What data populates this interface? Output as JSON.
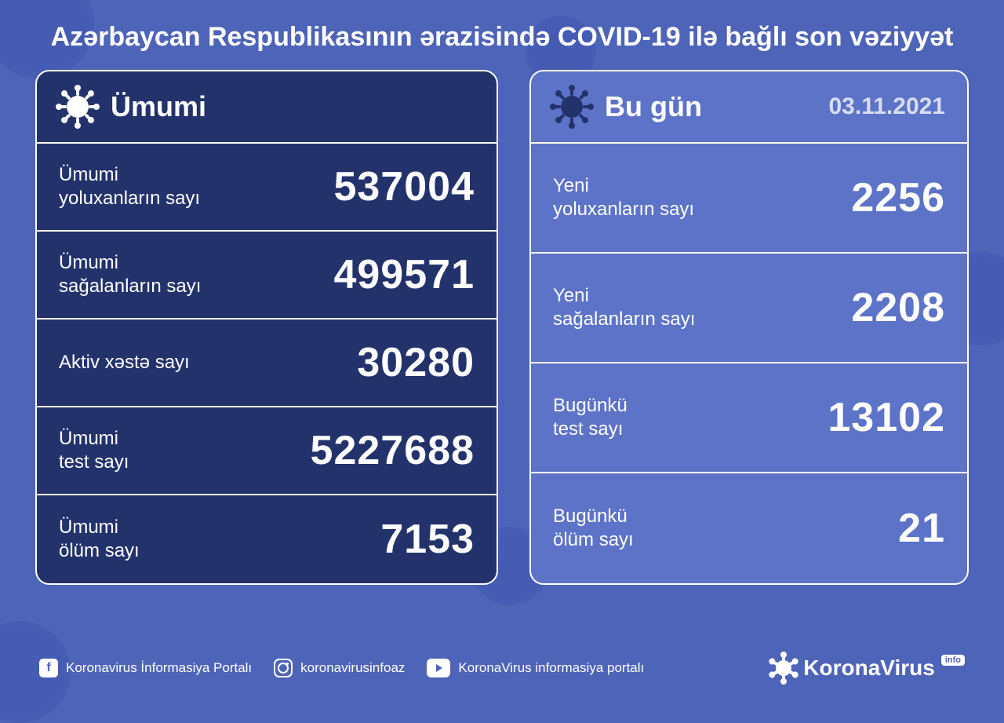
{
  "colors": {
    "page_bg": "#4e64b8",
    "panel_total_bg": "#24326c",
    "panel_today_bg": "#5d73c8",
    "border": "#ffffff",
    "text": "#ffffff",
    "date_text": "#d8ddf2"
  },
  "title": "Azərbaycan Respublikasının ərazisində COVID-19 ilə bağlı son vəziyyət",
  "panels": {
    "total": {
      "header": "Ümumi",
      "stats": [
        {
          "label": "Ümumi\nyoluxanların sayı",
          "value": "537004"
        },
        {
          "label": "Ümumi\nsağalanların sayı",
          "value": "499571"
        },
        {
          "label": "Aktiv xəstə sayı",
          "value": "30280"
        },
        {
          "label": "Ümumi\ntest sayı",
          "value": "5227688"
        },
        {
          "label": "Ümumi\nölüm sayı",
          "value": "7153"
        }
      ]
    },
    "today": {
      "header": "Bu gün",
      "date": "03.11.2021",
      "stats": [
        {
          "label": "Yeni\nyoluxanların sayı",
          "value": "2256"
        },
        {
          "label": "Yeni\nsağalanların sayı",
          "value": "2208"
        },
        {
          "label": "Bugünkü\ntest sayı",
          "value": "13102"
        },
        {
          "label": "Bugünkü\nölüm sayı",
          "value": "21"
        }
      ]
    }
  },
  "footer": {
    "socials": [
      {
        "icon": "facebook",
        "label": "Koronavirus İnformasiya Portalı"
      },
      {
        "icon": "instagram",
        "label": "koronavirusinfoaz"
      },
      {
        "icon": "youtube",
        "label": "KoronaVirus informasiya portalı"
      }
    ],
    "brand_name": "KoronaVirus",
    "brand_badge": "info"
  }
}
